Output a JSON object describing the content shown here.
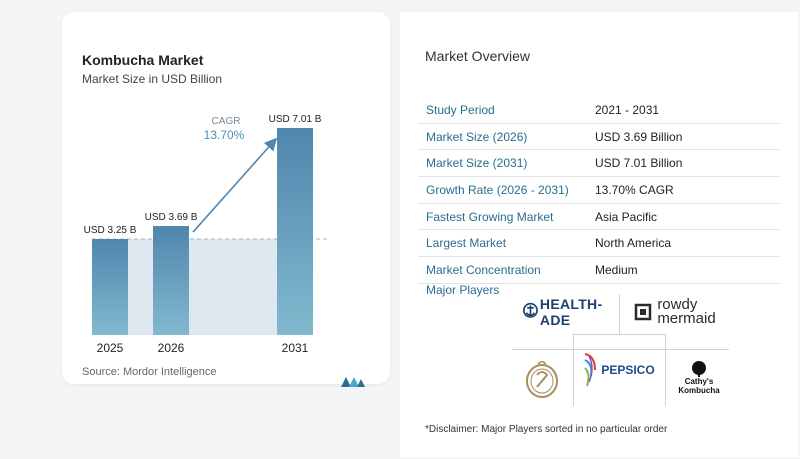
{
  "chart_card": {
    "title": "Kombucha Market",
    "subtitle": "Market Size in USD Billion",
    "source": "Source:  Mordor Intelligence",
    "cagr_label": "CAGR",
    "cagr_value": "13.70%",
    "colors": {
      "bar_top": "#4f86ad",
      "bar_bottom": "#82b9cf",
      "shade": "#dfe8f1",
      "arrow": "#4f86ad",
      "cagr": "#4a8fb8"
    }
  },
  "chart_data": {
    "type": "bar",
    "categories": [
      "2025",
      "2026",
      "2031"
    ],
    "values": [
      3.25,
      3.69,
      7.01
    ],
    "data_labels": [
      "USD 3.25 B",
      "USD 3.69 B",
      "USD 7.01 B"
    ],
    "title": "Kombucha Market",
    "subtitle": "Market Size in USD Billion",
    "xlabel": "",
    "ylabel": "",
    "ylim": [
      0,
      7.01
    ],
    "grid": false,
    "annotation": {
      "text": "CAGR 13.70%",
      "from": "2026",
      "to": "2031"
    }
  },
  "overview": {
    "title": "Market Overview",
    "rows": [
      {
        "label": "Study Period",
        "value": "2021 - 2031"
      },
      {
        "label": "Market Size (2026)",
        "value": "USD 3.69 Billion"
      },
      {
        "label": "Market Size (2031)",
        "value": "USD 7.01 Billion"
      },
      {
        "label": "Growth Rate (2026 - 2031)",
        "value": "13.70% CAGR"
      },
      {
        "label": "Fastest Growing Market",
        "value": "Asia Pacific"
      },
      {
        "label": "Largest Market",
        "value": "North America"
      },
      {
        "label": "Market Concentration",
        "value": "Medium"
      }
    ],
    "players_title": "Major Players",
    "players": {
      "health_ade": "HEALTH-ADE",
      "rowdy_1": "rowdy",
      "rowdy_2": "mermaid",
      "pepsico": "PEPSICO",
      "cathy_1": "Cathy's",
      "cathy_2": "Kombucha"
    },
    "disclaimer": "*Disclaimer: Major Players sorted in no particular order"
  }
}
